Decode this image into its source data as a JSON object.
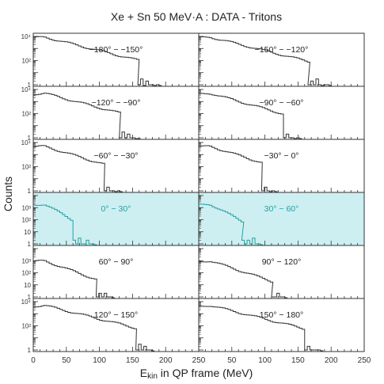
{
  "chart_data": {
    "type": "line",
    "title": "Xe + Sn 50 MeV·A : DATA - Tritons",
    "xlabel_main": "E",
    "xlabel_sub": "kin",
    "xlabel_rest": " in QP frame (MeV)",
    "ylabel": "Counts",
    "xlim": [
      0,
      250
    ],
    "ylim": [
      1,
      10000
    ],
    "yscale": "log",
    "x_ticks": [
      "0",
      "50",
      "100",
      "150",
      "200",
      "250"
    ],
    "y_ticks_full": [
      "1",
      "10²",
      "10⁴"
    ],
    "y_ticks_mid": [
      "1",
      "10",
      "10²",
      "10³"
    ],
    "colors": {
      "normal": "#333333",
      "highlight": "#2a9e9e",
      "highlight_bg": "#cdeff2"
    },
    "panels": [
      {
        "label": "−180° − −150°",
        "highlight": false,
        "edge": 158,
        "y0": 9000,
        "decay": 32,
        "tail": [
          1,
          3,
          0,
          2,
          1,
          1,
          0,
          1
        ]
      },
      {
        "label": "−150° − −120°",
        "highlight": false,
        "edge": 165,
        "y0": 9000,
        "decay": 32,
        "tail": [
          1,
          2,
          1,
          3,
          1,
          0,
          1,
          1
        ]
      },
      {
        "label": "−120° − −90°",
        "highlight": false,
        "edge": 130,
        "y0": 5000,
        "decay": 30,
        "tail": [
          1,
          3,
          1,
          2,
          1,
          1,
          0
        ]
      },
      {
        "label": "−90° − −60°",
        "highlight": false,
        "edge": 128,
        "y0": 5000,
        "decay": 28,
        "tail": [
          1,
          2,
          1,
          1,
          0,
          1
        ]
      },
      {
        "label": "−60° − −30°",
        "highlight": false,
        "edge": 107,
        "y0": 5000,
        "decay": 26,
        "tail": [
          1,
          2,
          1,
          1,
          0,
          1
        ]
      },
      {
        "label": "−30° − 0°",
        "highlight": false,
        "edge": 95,
        "y0": 5000,
        "decay": 25,
        "tail": [
          1,
          2,
          1,
          0,
          1
        ]
      },
      {
        "label": "0° − 30°",
        "highlight": true,
        "edge": 60,
        "y0": 2000,
        "decay": 14,
        "tail": [
          2,
          1,
          3,
          1,
          1,
          2,
          1,
          1
        ]
      },
      {
        "label": "30° − 60°",
        "highlight": true,
        "edge": 65,
        "y0": 2000,
        "decay": 15,
        "tail": [
          2,
          1,
          2,
          1,
          3,
          1,
          1
        ]
      },
      {
        "label": "60° − 90°",
        "highlight": false,
        "edge": 95,
        "y0": 1000,
        "decay": 22,
        "tail": [
          1,
          2,
          1,
          2,
          1,
          1
        ]
      },
      {
        "label": "90° − 120°",
        "highlight": false,
        "edge": 110,
        "y0": 1000,
        "decay": 24,
        "tail": [
          1,
          1,
          2,
          1,
          1
        ]
      },
      {
        "label": "120° − 150°",
        "highlight": false,
        "edge": 155,
        "y0": 5000,
        "decay": 32,
        "tail": [
          1,
          3,
          1,
          2,
          1,
          1
        ]
      },
      {
        "label": "150° − 180°",
        "highlight": false,
        "edge": 160,
        "y0": 5000,
        "decay": 32,
        "tail": [
          1,
          2,
          1,
          1,
          1,
          1
        ]
      }
    ]
  }
}
